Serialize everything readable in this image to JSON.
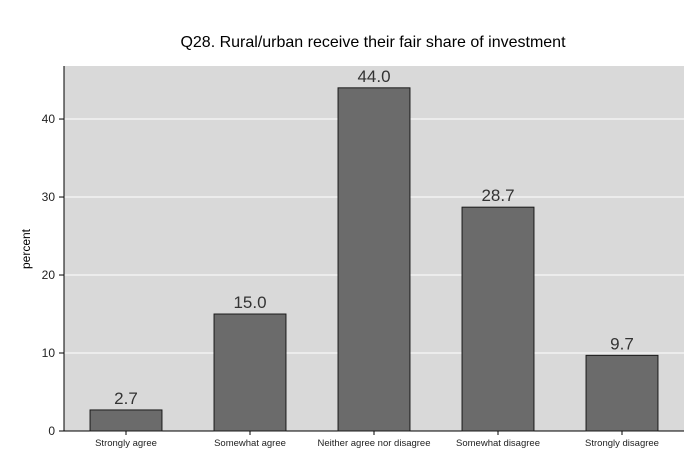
{
  "chart_data": {
    "type": "bar",
    "title": "Q28. Rural/urban receive their fair share of investment",
    "xlabel": "",
    "ylabel": "percent",
    "categories": [
      "Strongly agree",
      "Somewhat agree",
      "Neither agree nor disagree",
      "Somewhat disagree",
      "Strongly disagree"
    ],
    "values": [
      2.7,
      15.0,
      44.0,
      28.7,
      9.7
    ],
    "value_labels": [
      "2.7",
      "15.0",
      "44.0",
      "28.7",
      "9.7"
    ],
    "yticks": [
      0,
      10,
      20,
      30,
      40
    ],
    "ylim": [
      0,
      46.8
    ],
    "grid": true,
    "legend": "none",
    "colors": {
      "plot_background": "#d9d9d9",
      "bar_fill": "#6b6b6b",
      "bar_stroke": "#1a1a1a",
      "grid": "#ffffff",
      "text": "#222222"
    }
  }
}
